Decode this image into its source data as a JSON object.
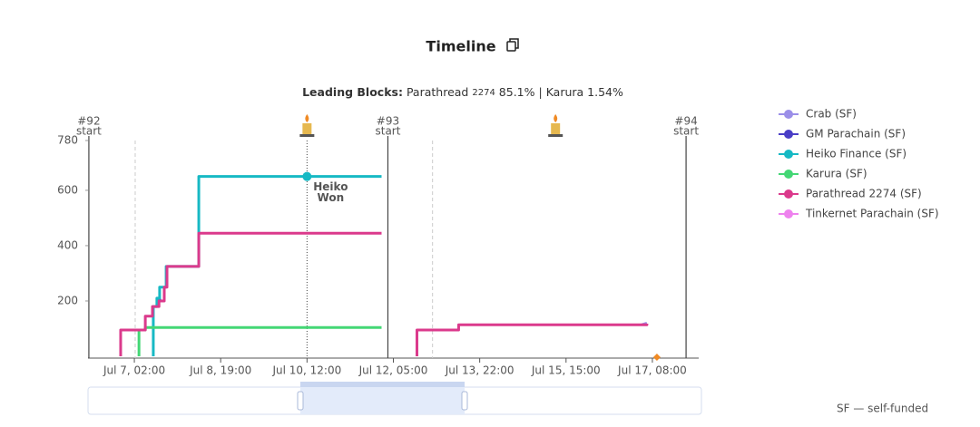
{
  "chart_data": {
    "type": "line",
    "title": "Timeline",
    "subtitle_label": "Leading Blocks:",
    "leaders": [
      {
        "name": "Parathread",
        "id": "2274",
        "share": "85.1%"
      },
      {
        "name": "Karura",
        "share": "1.54%"
      }
    ],
    "xlim": [
      -20,
      270
    ],
    "ylim": [
      0,
      780
    ],
    "xticks": [
      {
        "value": 2,
        "label": "Jul 7, 02:00"
      },
      {
        "value": 43,
        "label": "Jul 8, 19:00"
      },
      {
        "value": 84,
        "label": "Jul 10, 12:00"
      },
      {
        "value": 125,
        "label": "Jul 12, 05:00"
      },
      {
        "value": 166,
        "label": "Jul 13, 22:00"
      },
      {
        "value": 207,
        "label": "Jul 15, 15:00"
      },
      {
        "value": 248,
        "label": "Jul 17, 08:00"
      }
    ],
    "yticks": [
      200,
      400,
      600,
      780
    ],
    "auctions": [
      {
        "label": "#92",
        "note": "start",
        "x": -19.6
      },
      {
        "label": "#93",
        "note": "start",
        "x": 122.4
      },
      {
        "label": "#94",
        "note": "start",
        "x": 264
      }
    ],
    "ending_x": [
      2.4,
      143.6
    ],
    "candle_x": [
      84,
      202
    ],
    "winner": {
      "label_lines": [
        "Heiko",
        "Won"
      ],
      "x": 84,
      "y": 650
    },
    "series": [
      {
        "name": "Crab (SF)",
        "color": "#9b8fe8",
        "x": [
          243,
          245.4
        ],
        "values": [
          114,
          120
        ]
      },
      {
        "name": "GM Parachain (SF)",
        "color": "#4a3ec6",
        "x": [
          13.2,
          14.5
        ],
        "values": [
          205,
          210
        ]
      },
      {
        "name": "Heiko Finance (SF)",
        "color": "#17b9c4",
        "x": [
          11,
          11,
          12.7,
          12.7,
          14,
          14,
          17.1,
          17.1,
          32.6,
          32.6,
          119.4
        ],
        "values": [
          0,
          180,
          180,
          210,
          210,
          250,
          250,
          325,
          325,
          650,
          650
        ]
      },
      {
        "name": "Karura (SF)",
        "color": "#44d775",
        "x": [
          4.2,
          4.2,
          7.2,
          7.2,
          119.4
        ],
        "values": [
          0,
          95,
          95,
          104,
          104
        ]
      },
      {
        "name": "Parathread 2274 (SF)",
        "color": "#db3a8c",
        "x": [
          -4.5,
          -4.5,
          7.2,
          7.2,
          10.6,
          10.6,
          13.7,
          13.7,
          16.2,
          16.2,
          17.5,
          17.5,
          32.6,
          32.6,
          119.4,
          null,
          136.2,
          136.2,
          156,
          156,
          245.4,
          245.4
        ],
        "values": [
          0,
          95,
          95,
          145,
          145,
          180,
          180,
          200,
          200,
          250,
          250,
          325,
          325,
          445,
          445,
          null,
          0,
          95,
          95,
          114,
          114,
          118
        ]
      },
      {
        "name": "Tinkernet Parachain (SF)",
        "color": "#ee82ee",
        "x": [],
        "values": []
      }
    ],
    "footnote": "SF — self-funded"
  }
}
